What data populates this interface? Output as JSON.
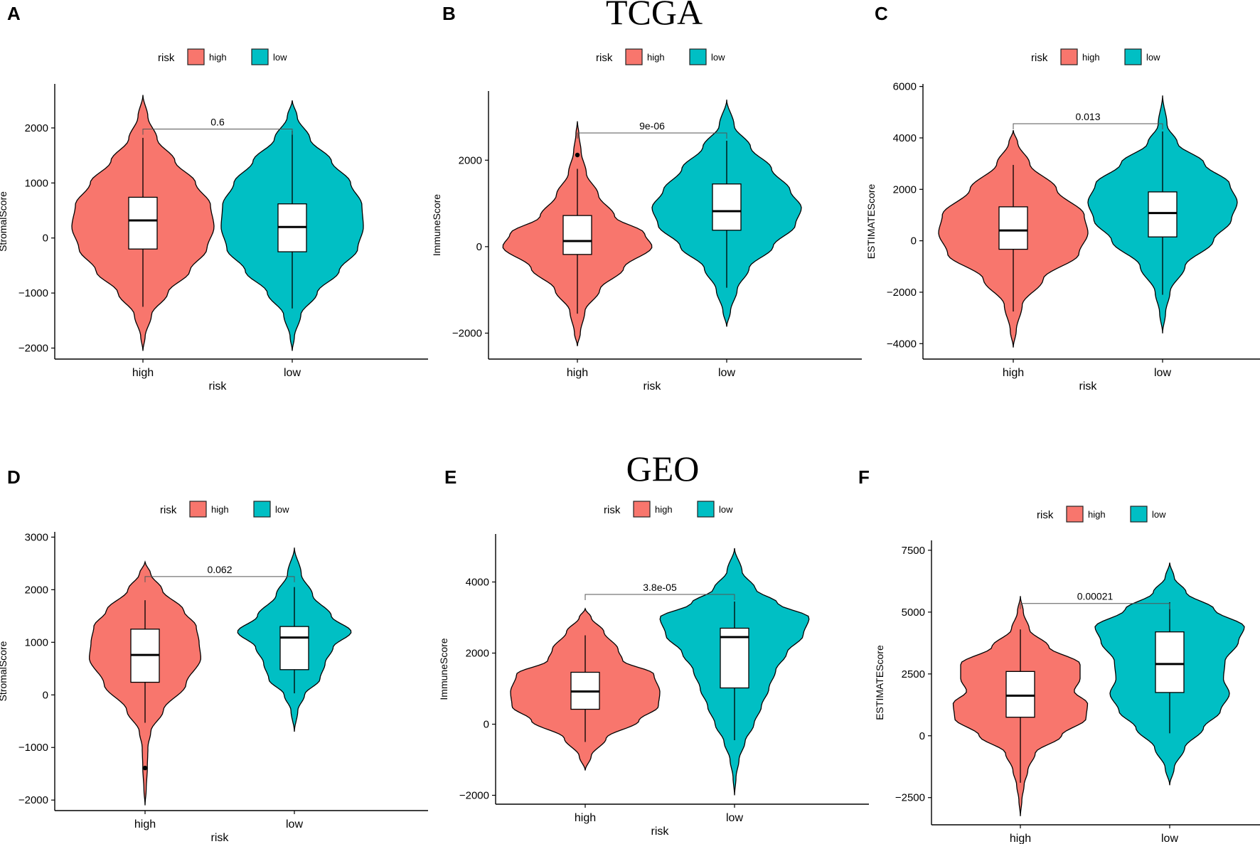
{
  "headings": {
    "top": "TCGA",
    "bottom": "GEO"
  },
  "colors": {
    "high": "#F8766D",
    "low": "#00BFC4"
  },
  "legend": {
    "title": "risk",
    "items": [
      "high",
      "low"
    ]
  },
  "chart_data": [
    {
      "panel_label": "A",
      "type": "violin",
      "title": "",
      "xlabel": "risk",
      "ylabel": "StromalScore",
      "categories": [
        "high",
        "low"
      ],
      "ylim": [
        -2200,
        2800
      ],
      "yticks": [
        -2000,
        -1000,
        0,
        1000,
        2000
      ],
      "tick_labels": [
        "−2000",
        "−1000",
        "0",
        "1000",
        "2000"
      ],
      "p_value": "0.6",
      "bracket_y": 1980,
      "series": [
        {
          "name": "high",
          "min": -2050,
          "max": 2600,
          "whisker_low": -1250,
          "q1": -200,
          "median": 320,
          "q3": 740,
          "whisker_high": 1820,
          "outliers": [],
          "density": [
            [
              -2050,
              0
            ],
            [
              -1800,
              0.03
            ],
            [
              -1400,
              0.12
            ],
            [
              -1000,
              0.35
            ],
            [
              -600,
              0.66
            ],
            [
              -200,
              0.9
            ],
            [
              200,
              1.0
            ],
            [
              600,
              0.95
            ],
            [
              1000,
              0.74
            ],
            [
              1400,
              0.45
            ],
            [
              1800,
              0.2
            ],
            [
              2200,
              0.07
            ],
            [
              2600,
              0
            ]
          ]
        },
        {
          "name": "low",
          "min": -2050,
          "max": 2500,
          "whisker_low": -1280,
          "q1": -250,
          "median": 200,
          "q3": 620,
          "whisker_high": 1950,
          "outliers": [],
          "density": [
            [
              -2050,
              0
            ],
            [
              -1800,
              0.03
            ],
            [
              -1400,
              0.12
            ],
            [
              -1000,
              0.35
            ],
            [
              -600,
              0.66
            ],
            [
              -200,
              0.92
            ],
            [
              200,
              1.0
            ],
            [
              600,
              0.98
            ],
            [
              1000,
              0.82
            ],
            [
              1400,
              0.55
            ],
            [
              1800,
              0.25
            ],
            [
              2200,
              0.07
            ],
            [
              2500,
              0
            ]
          ]
        }
      ]
    },
    {
      "panel_label": "B",
      "type": "violin",
      "title": "",
      "xlabel": "risk",
      "ylabel": "ImmuneScore",
      "categories": [
        "high",
        "low"
      ],
      "ylim": [
        -2600,
        3600
      ],
      "yticks": [
        -2000,
        0,
        2000
      ],
      "tick_labels": [
        "−2000",
        "0",
        "2000"
      ],
      "p_value": "9e-06",
      "bracket_y": 2630,
      "series": [
        {
          "name": "high",
          "min": -2300,
          "max": 2900,
          "whisker_low": -1550,
          "q1": -180,
          "median": 130,
          "q3": 720,
          "whisker_high": 1800,
          "outliers": [
            2120
          ],
          "density": [
            [
              -2300,
              0
            ],
            [
              -2000,
              0.04
            ],
            [
              -1500,
              0.1
            ],
            [
              -1000,
              0.3
            ],
            [
              -500,
              0.62
            ],
            [
              0,
              1.0
            ],
            [
              300,
              0.9
            ],
            [
              700,
              0.5
            ],
            [
              1200,
              0.28
            ],
            [
              1700,
              0.12
            ],
            [
              2200,
              0.05
            ],
            [
              2600,
              0.02
            ],
            [
              2900,
              0
            ]
          ]
        },
        {
          "name": "low",
          "min": -1850,
          "max": 3400,
          "whisker_low": -950,
          "q1": 380,
          "median": 820,
          "q3": 1450,
          "whisker_high": 2450,
          "outliers": [],
          "density": [
            [
              -1850,
              0
            ],
            [
              -1500,
              0.05
            ],
            [
              -1000,
              0.14
            ],
            [
              -500,
              0.3
            ],
            [
              0,
              0.62
            ],
            [
              500,
              0.92
            ],
            [
              900,
              1.0
            ],
            [
              1300,
              0.85
            ],
            [
              1800,
              0.6
            ],
            [
              2300,
              0.32
            ],
            [
              2800,
              0.1
            ],
            [
              3400,
              0
            ]
          ]
        }
      ]
    },
    {
      "panel_label": "C",
      "type": "violin",
      "title": "",
      "xlabel": "risk",
      "ylabel": "ESTIMATEScore",
      "categories": [
        "high",
        "low"
      ],
      "ylim": [
        -4600,
        6100
      ],
      "yticks": [
        -4000,
        -2000,
        0,
        2000,
        4000,
        6000
      ],
      "tick_labels": [
        "−4000",
        "−2000",
        "0",
        "2000",
        "4000",
        "6000"
      ],
      "p_value": "0.013",
      "bracket_y": 4550,
      "series": [
        {
          "name": "high",
          "min": -4150,
          "max": 4300,
          "whisker_low": -2750,
          "q1": -330,
          "median": 400,
          "q3": 1320,
          "whisker_high": 2950,
          "outliers": [],
          "density": [
            [
              -4150,
              0
            ],
            [
              -3500,
              0.04
            ],
            [
              -2500,
              0.12
            ],
            [
              -1500,
              0.4
            ],
            [
              -500,
              0.88
            ],
            [
              300,
              1.0
            ],
            [
              1000,
              0.95
            ],
            [
              2000,
              0.58
            ],
            [
              3000,
              0.22
            ],
            [
              3800,
              0.06
            ],
            [
              4300,
              0
            ]
          ]
        },
        {
          "name": "low",
          "min": -3600,
          "max": 5650,
          "whisker_low": -2100,
          "q1": 150,
          "median": 1080,
          "q3": 1900,
          "whisker_high": 4250,
          "outliers": [],
          "density": [
            [
              -3600,
              0
            ],
            [
              -2800,
              0.04
            ],
            [
              -2000,
              0.1
            ],
            [
              -1000,
              0.3
            ],
            [
              0,
              0.68
            ],
            [
              800,
              0.92
            ],
            [
              1500,
              1.0
            ],
            [
              2200,
              0.9
            ],
            [
              3000,
              0.56
            ],
            [
              3800,
              0.2
            ],
            [
              4500,
              0.06
            ],
            [
              5650,
              0
            ]
          ]
        }
      ]
    },
    {
      "panel_label": "D",
      "type": "violin",
      "title": "",
      "xlabel": "risk",
      "ylabel": "StromalScore",
      "categories": [
        "high",
        "low"
      ],
      "ylim": [
        -2200,
        3100
      ],
      "yticks": [
        -2000,
        -1000,
        0,
        1000,
        2000,
        3000
      ],
      "tick_labels": [
        "−2000",
        "−1000",
        "0",
        "1000",
        "2000",
        "3000"
      ],
      "p_value": "0.062",
      "bracket_y": 2250,
      "series": [
        {
          "name": "high",
          "min": -2100,
          "max": 2530,
          "whisker_low": -530,
          "q1": 240,
          "median": 760,
          "q3": 1250,
          "whisker_high": 1800,
          "outliers": [
            -1390
          ],
          "density": [
            [
              -2100,
              0
            ],
            [
              -1800,
              0.02
            ],
            [
              -1400,
              0.04
            ],
            [
              -1000,
              0.05
            ],
            [
              -700,
              0.1
            ],
            [
              -300,
              0.32
            ],
            [
              200,
              0.72
            ],
            [
              700,
              0.98
            ],
            [
              1000,
              0.95
            ],
            [
              1300,
              0.9
            ],
            [
              1600,
              0.68
            ],
            [
              2000,
              0.3
            ],
            [
              2300,
              0.1
            ],
            [
              2530,
              0
            ]
          ]
        },
        {
          "name": "low",
          "min": -700,
          "max": 2800,
          "whisker_low": 30,
          "q1": 480,
          "median": 1090,
          "q3": 1300,
          "whisker_high": 2050,
          "outliers": [],
          "density": [
            [
              -700,
              0
            ],
            [
              -300,
              0.06
            ],
            [
              0,
              0.18
            ],
            [
              300,
              0.45
            ],
            [
              600,
              0.54
            ],
            [
              900,
              0.68
            ],
            [
              1200,
              1.0
            ],
            [
              1500,
              0.65
            ],
            [
              1900,
              0.32
            ],
            [
              2300,
              0.12
            ],
            [
              2800,
              0
            ]
          ]
        }
      ]
    },
    {
      "panel_label": "E",
      "type": "violin",
      "title": "",
      "xlabel": "risk",
      "ylabel": "ImmuneScore",
      "categories": [
        "high",
        "low"
      ],
      "ylim": [
        -2250,
        5350
      ],
      "yticks": [
        -2000,
        0,
        2000,
        4000
      ],
      "tick_labels": [
        "−2000",
        "0",
        "2000",
        "4000"
      ],
      "p_value": "3.8e-05",
      "bracket_y": 3650,
      "series": [
        {
          "name": "high",
          "min": -1300,
          "max": 3250,
          "whisker_low": -500,
          "q1": 420,
          "median": 920,
          "q3": 1460,
          "whisker_high": 2500,
          "outliers": [],
          "density": [
            [
              -1300,
              0
            ],
            [
              -900,
              0.08
            ],
            [
              -400,
              0.28
            ],
            [
              100,
              0.72
            ],
            [
              500,
              0.98
            ],
            [
              900,
              1.0
            ],
            [
              1400,
              0.92
            ],
            [
              1800,
              0.5
            ],
            [
              2100,
              0.44
            ],
            [
              2600,
              0.25
            ],
            [
              3000,
              0.08
            ],
            [
              3250,
              0
            ]
          ]
        },
        {
          "name": "low",
          "min": -2000,
          "max": 4950,
          "whisker_low": -450,
          "q1": 1020,
          "median": 2450,
          "q3": 2700,
          "whisker_high": 3450,
          "outliers": [],
          "density": [
            [
              -2000,
              0
            ],
            [
              -1500,
              0.02
            ],
            [
              -1000,
              0.06
            ],
            [
              -500,
              0.14
            ],
            [
              0,
              0.26
            ],
            [
              500,
              0.36
            ],
            [
              1000,
              0.46
            ],
            [
              1500,
              0.55
            ],
            [
              2000,
              0.7
            ],
            [
              2500,
              0.92
            ],
            [
              3000,
              1.0
            ],
            [
              3400,
              0.58
            ],
            [
              3800,
              0.28
            ],
            [
              4300,
              0.1
            ],
            [
              4950,
              0
            ]
          ]
        }
      ]
    },
    {
      "panel_label": "F",
      "type": "violin",
      "title": "",
      "xlabel": "risk",
      "ylabel": "ESTIMATEScore",
      "categories": [
        "high",
        "low"
      ],
      "ylim": [
        -3600,
        7900
      ],
      "yticks": [
        -2500,
        0,
        2500,
        5000,
        7500
      ],
      "tick_labels": [
        "−2500",
        "0",
        "2500",
        "5000",
        "7500"
      ],
      "p_value": "0.00021",
      "bracket_y": 5350,
      "series": [
        {
          "name": "high",
          "min": -3250,
          "max": 5650,
          "whisker_low": -1900,
          "q1": 750,
          "median": 1620,
          "q3": 2600,
          "whisker_high": 4300,
          "outliers": [],
          "density": [
            [
              -3250,
              0
            ],
            [
              -2600,
              0.02
            ],
            [
              -2000,
              0.05
            ],
            [
              -1400,
              0.1
            ],
            [
              -700,
              0.2
            ],
            [
              0,
              0.55
            ],
            [
              700,
              0.88
            ],
            [
              1300,
              0.9
            ],
            [
              1800,
              0.72
            ],
            [
              2300,
              0.8
            ],
            [
              2900,
              0.8
            ],
            [
              3600,
              0.38
            ],
            [
              4300,
              0.12
            ],
            [
              5000,
              0.04
            ],
            [
              5650,
              0
            ]
          ]
        },
        {
          "name": "low",
          "min": -2000,
          "max": 7000,
          "whisker_low": 100,
          "q1": 1750,
          "median": 2900,
          "q3": 4200,
          "whisker_high": 5400,
          "outliers": [],
          "density": [
            [
              -2000,
              0
            ],
            [
              -1300,
              0.06
            ],
            [
              -500,
              0.2
            ],
            [
              300,
              0.45
            ],
            [
              1000,
              0.68
            ],
            [
              1700,
              0.8
            ],
            [
              2300,
              0.72
            ],
            [
              3000,
              0.74
            ],
            [
              3800,
              0.92
            ],
            [
              4400,
              1.0
            ],
            [
              5100,
              0.6
            ],
            [
              5800,
              0.22
            ],
            [
              6400,
              0.06
            ],
            [
              7000,
              0
            ]
          ]
        }
      ]
    }
  ]
}
